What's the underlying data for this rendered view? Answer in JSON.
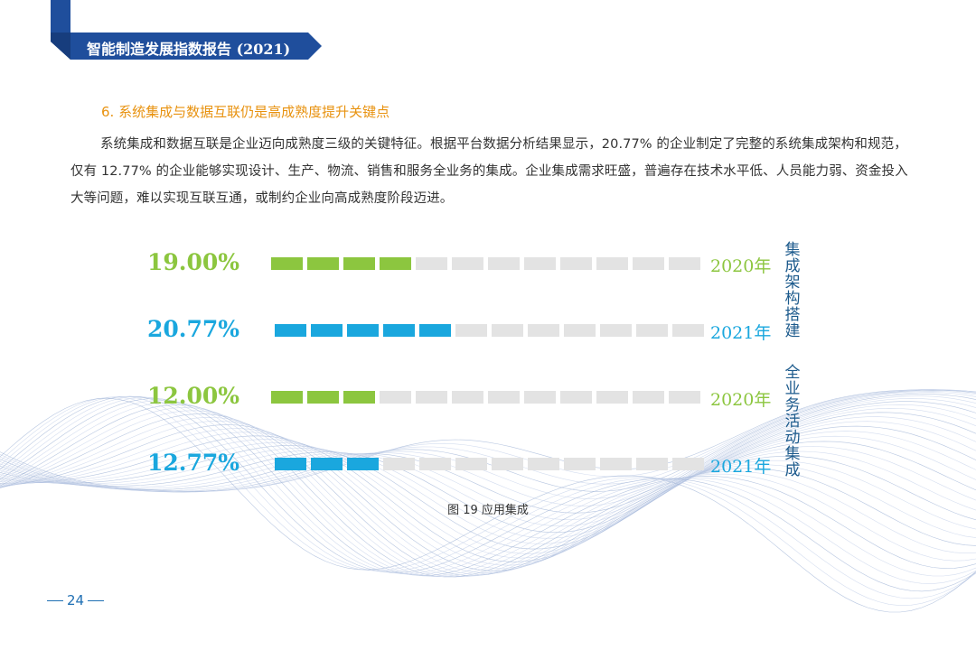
{
  "header": {
    "title": "智能制造发展指数报告 (2021)",
    "color": "#1f4e9c"
  },
  "section": {
    "heading": "6. 系统集成与数据互联仍是高成熟度提升关键点",
    "paragraph": "系统集成和数据互联是企业迈向成熟度三级的关键特征。根据平台数据分析结果显示，20.77% 的企业制定了完整的系统集成架构和规范，仅有 12.77% 的企业能够实现设计、生产、物流、销售和服务全业务的集成。企业集成需求旺盛，普遍存在技术水平低、人员能力弱、资金投入大等问题，难以实现互联互通，或制约企业向高成熟度阶段迈进。"
  },
  "chart_data": {
    "type": "bar",
    "title": "",
    "groups": [
      {
        "name": "集成架构搭建",
        "rows": [
          {
            "year": "2020年",
            "value": 19.0,
            "label": "19.00%",
            "filled": 4,
            "total": 12
          },
          {
            "year": "2021年",
            "value": 20.77,
            "label": "20.77%",
            "filled": 5,
            "total": 12
          }
        ]
      },
      {
        "name": "全业务活动集成",
        "rows": [
          {
            "year": "2020年",
            "value": 12.0,
            "label": "12.00%",
            "filled": 3,
            "total": 12
          },
          {
            "year": "2021年",
            "value": 12.77,
            "label": "12.77%",
            "filled": 3,
            "total": 12
          }
        ]
      }
    ],
    "colors": {
      "2020年": "#8cc63f",
      "2021年": "#1aa7de",
      "empty": "#e3e3e3"
    }
  },
  "figure": {
    "caption": "图 19  应用集成"
  },
  "footer": {
    "page_number": "24"
  }
}
